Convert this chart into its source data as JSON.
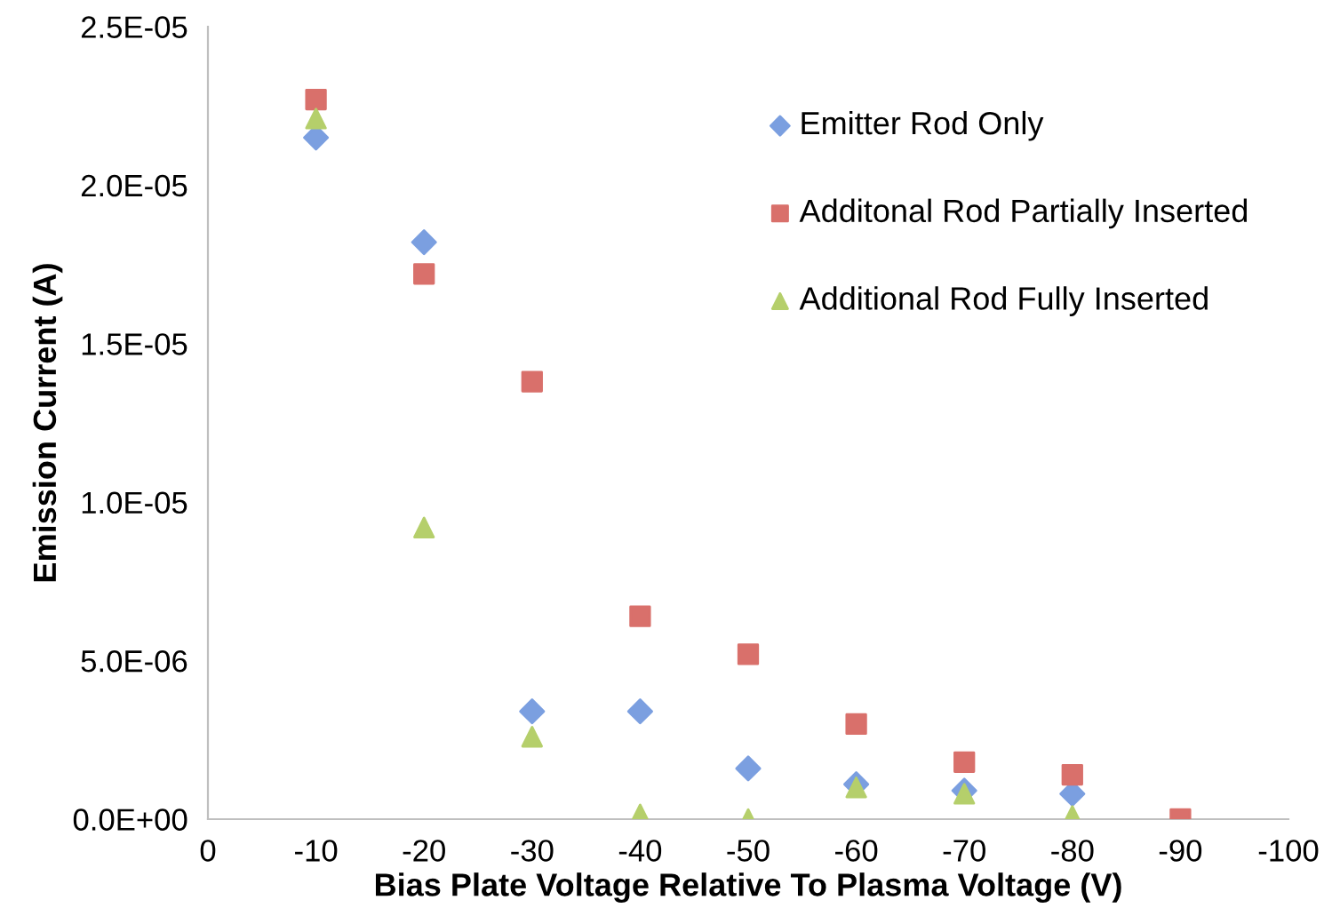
{
  "chart_data": {
    "type": "scatter",
    "xlabel": "Bias Plate Voltage Relative To Plasma Voltage (V)",
    "ylabel": "Emission Current (A)",
    "xlim": [
      0,
      -100
    ],
    "xticks": [
      0,
      -10,
      -20,
      -30,
      -40,
      -50,
      -60,
      -70,
      -80,
      -90,
      -100
    ],
    "ylim": [
      0,
      2.5e-05
    ],
    "yticks": [
      {
        "value": 0,
        "label": "0.0E+00"
      },
      {
        "value": 5e-06,
        "label": "5.0E-06"
      },
      {
        "value": 1e-05,
        "label": "1.0E-05"
      },
      {
        "value": 1.5e-05,
        "label": "1.5E-05"
      },
      {
        "value": 2e-05,
        "label": "2.0E-05"
      },
      {
        "value": 2.5e-05,
        "label": "2.5E-05"
      }
    ],
    "grid": false,
    "legend": "top right",
    "series": [
      {
        "name": "Emitter Rod Only",
        "color": "#7b9fe0",
        "marker": "diamond",
        "x": [
          -10,
          -20,
          -30,
          -40,
          -50,
          -60,
          -70,
          -80
        ],
        "values": [
          2.15e-05,
          1.82e-05,
          3.4e-06,
          3.4e-06,
          1.6e-06,
          1.1e-06,
          9e-07,
          8e-07
        ]
      },
      {
        "name": "Additonal Rod Partially Inserted",
        "color": "#d9706b",
        "marker": "square",
        "x": [
          -10,
          -20,
          -30,
          -40,
          -50,
          -60,
          -70,
          -80,
          -90
        ],
        "values": [
          2.27e-05,
          1.72e-05,
          1.38e-05,
          6.4e-06,
          5.2e-06,
          3e-06,
          1.8e-06,
          1.4e-06,
          0
        ]
      },
      {
        "name": "Additional Rod Fully Inserted",
        "color": "#b5cf6b",
        "marker": "triangle",
        "x": [
          -10,
          -20,
          -30,
          -40,
          -50,
          -60,
          -70,
          -80
        ],
        "values": [
          2.21e-05,
          9.2e-06,
          2.6e-06,
          1.5e-07,
          0,
          1e-06,
          8e-07,
          1e-07
        ]
      }
    ]
  }
}
